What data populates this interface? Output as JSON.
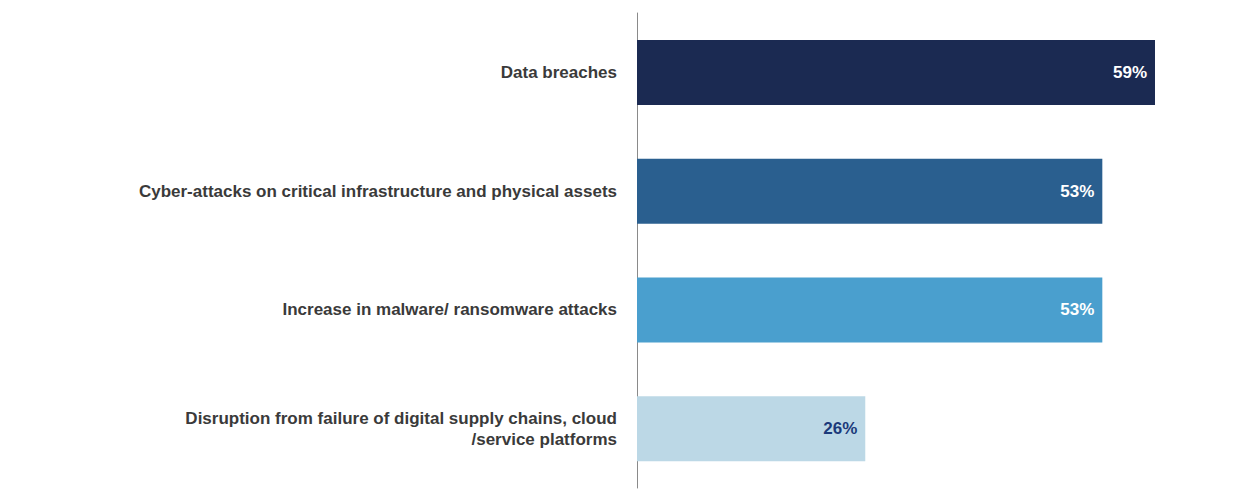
{
  "chart_data": {
    "type": "bar",
    "orientation": "horizontal",
    "categories": [
      "Data breaches",
      "Cyber-attacks on critical infrastructure and physical assets",
      "Increase in malware/ ransomware attacks",
      "Disruption from failure of digital supply chains, cloud\n/service platforms"
    ],
    "values": [
      59,
      53,
      53,
      26
    ],
    "value_labels": [
      "59%",
      "53%",
      "53%",
      "26%"
    ],
    "colors": [
      "#1b2a52",
      "#2a5f8f",
      "#4a9fce",
      "#bcd8e6"
    ],
    "data_labels": true,
    "grid": false,
    "tick_labels": "y"
  }
}
